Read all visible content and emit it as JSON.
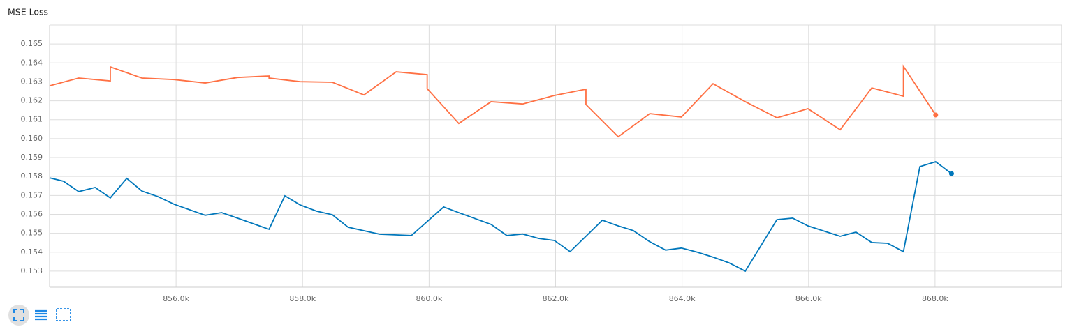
{
  "chart_data": {
    "type": "line",
    "title": "MSE Loss",
    "xlim": [
      854000,
      870000
    ],
    "xticks": [
      {
        "value": 856000,
        "label": "856.0k"
      },
      {
        "value": 858000,
        "label": "858.0k"
      },
      {
        "value": 860000,
        "label": "860.0k"
      },
      {
        "value": 862000,
        "label": "862.0k"
      },
      {
        "value": 864000,
        "label": "864.0k"
      },
      {
        "value": 866000,
        "label": "866.0k"
      },
      {
        "value": 868000,
        "label": "868.0k"
      }
    ],
    "ylim": [
      0.15215,
      0.166
    ],
    "yticks": [
      0.153,
      0.154,
      0.155,
      0.156,
      0.157,
      0.158,
      0.159,
      {
        "value": 0.16,
        "label": "0.160"
      },
      0.161,
      0.162,
      0.163,
      0.164,
      0.165
    ],
    "grid": true,
    "series": [
      {
        "color": "#ff7043",
        "x": [
          854000,
          854460,
          854960,
          854960,
          855460,
          855970,
          856460,
          856970,
          857470,
          857470,
          857960,
          858470,
          858970,
          859480,
          859970,
          859970,
          860470,
          860980,
          861480,
          861980,
          862480,
          862480,
          862990,
          863490,
          863990,
          864490,
          865000,
          865500,
          865990,
          866500,
          867000,
          867500,
          867500,
          868010
        ],
        "values": [
          0.16279,
          0.1632,
          0.16305,
          0.16379,
          0.1632,
          0.16312,
          0.16294,
          0.16323,
          0.16331,
          0.1632,
          0.16301,
          0.16298,
          0.16231,
          0.16353,
          0.16338,
          0.16264,
          0.1608,
          0.16195,
          0.16183,
          0.16228,
          0.16261,
          0.1618,
          0.1601,
          0.16132,
          0.16114,
          0.1629,
          0.16195,
          0.1611,
          0.16158,
          0.16047,
          0.16268,
          0.16224,
          0.16382,
          0.16125
        ]
      },
      {
        "color": "#0077bb",
        "x": [
          854000,
          854220,
          854460,
          854720,
          854960,
          855220,
          855460,
          855710,
          855970,
          856460,
          856720,
          856970,
          857470,
          857720,
          857960,
          858220,
          858470,
          858720,
          859220,
          859720,
          860230,
          860470,
          860980,
          861230,
          861480,
          861730,
          861980,
          862230,
          862740,
          862990,
          863230,
          863490,
          863740,
          863990,
          864240,
          864490,
          864740,
          865000,
          865500,
          865750,
          865990,
          866500,
          866750,
          867000,
          867250,
          867500,
          867760,
          868010,
          868260
        ],
        "values": [
          0.15793,
          0.15775,
          0.1572,
          0.15742,
          0.15687,
          0.1579,
          0.15723,
          0.15694,
          0.15653,
          0.15595,
          0.15609,
          0.1558,
          0.15521,
          0.15698,
          0.1565,
          0.15617,
          0.15598,
          0.15532,
          0.15495,
          0.15488,
          0.15639,
          0.15609,
          0.15547,
          0.15488,
          0.15496,
          0.15473,
          0.15462,
          0.15403,
          0.15569,
          0.15539,
          0.15514,
          0.15455,
          0.15411,
          0.15422,
          0.154,
          0.15374,
          0.15344,
          0.153,
          0.15572,
          0.1558,
          0.15539,
          0.15484,
          0.15506,
          0.15451,
          0.15447,
          0.15403,
          0.15852,
          0.15878,
          0.15815
        ]
      }
    ]
  }
}
